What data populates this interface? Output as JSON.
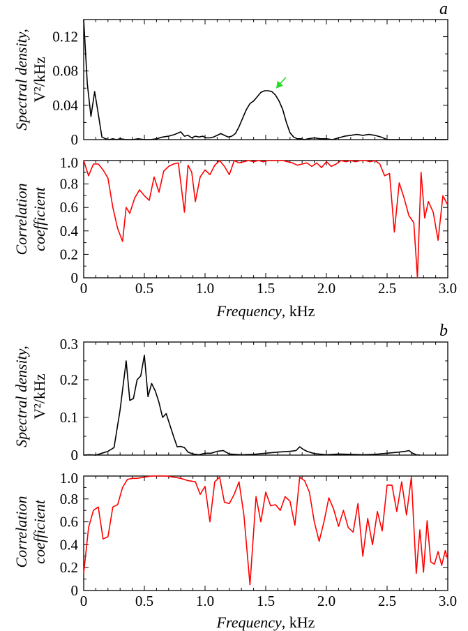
{
  "panel_labels": [
    "a",
    "b"
  ],
  "chart_data": [
    {
      "type": "line",
      "panel": "a",
      "ylabel_line1": "Spectral density,",
      "ylabel_line2": "V²/kHz",
      "xlim": [
        0,
        3.0
      ],
      "ylim": [
        0,
        0.14
      ],
      "yticks": [
        "0",
        "0.04",
        "0.08",
        "0.12"
      ],
      "xticks": [],
      "annotation": {
        "label": "peak",
        "x": 1.58,
        "y": 0.058,
        "color": "#22dd22"
      },
      "series": [
        {
          "color": "#000000",
          "x": [
            0.0,
            0.03,
            0.06,
            0.09,
            0.12,
            0.15,
            0.18,
            0.21,
            0.24,
            0.27,
            0.3,
            0.35,
            0.4,
            0.45,
            0.5,
            0.55,
            0.6,
            0.65,
            0.7,
            0.75,
            0.8,
            0.83,
            0.86,
            0.89,
            0.92,
            0.95,
            0.98,
            1.01,
            1.04,
            1.07,
            1.1,
            1.13,
            1.16,
            1.19,
            1.22,
            1.25,
            1.28,
            1.31,
            1.34,
            1.37,
            1.4,
            1.43,
            1.46,
            1.49,
            1.52,
            1.55,
            1.58,
            1.61,
            1.64,
            1.67,
            1.7,
            1.73,
            1.76,
            1.79,
            1.82,
            1.85,
            1.9,
            1.95,
            2.0,
            2.05,
            2.1,
            2.15,
            2.2,
            2.25,
            2.3,
            2.35,
            2.4,
            2.45,
            2.5,
            2.6,
            2.7,
            2.8,
            2.9,
            3.0
          ],
          "y": [
            0.14,
            0.065,
            0.027,
            0.056,
            0.03,
            0.003,
            0.001,
            0.0,
            0.001,
            0.0,
            0.001,
            0.0,
            0.0,
            0.001,
            0.0,
            0.0,
            0.001,
            0.003,
            0.004,
            0.006,
            0.009,
            0.004,
            0.005,
            0.002,
            0.004,
            0.003,
            0.004,
            0.002,
            0.002,
            0.003,
            0.005,
            0.007,
            0.005,
            0.003,
            0.004,
            0.007,
            0.015,
            0.025,
            0.035,
            0.042,
            0.045,
            0.05,
            0.055,
            0.057,
            0.057,
            0.056,
            0.052,
            0.045,
            0.035,
            0.02,
            0.008,
            0.003,
            0.001,
            0.001,
            0.0,
            0.001,
            0.002,
            0.001,
            0.001,
            0.0,
            0.002,
            0.004,
            0.005,
            0.006,
            0.005,
            0.006,
            0.005,
            0.003,
            0.0,
            0.0,
            0.0,
            0.0,
            0.0,
            0.0
          ]
        }
      ]
    },
    {
      "type": "line",
      "panel": "a",
      "ylabel_line1": "Correlation",
      "ylabel_line2": "coefficient",
      "xlabel": "Frequency",
      "xlabel_unit": ", kHz",
      "xlim": [
        0,
        3.0
      ],
      "ylim": [
        0,
        1.0
      ],
      "yticks": [
        "0",
        "0.2",
        "0.4",
        "0.6",
        "0.8",
        "1.0"
      ],
      "xticks": [
        "0",
        "0.5",
        "1.0",
        "1.5",
        "2.0",
        "2.5",
        "3.0"
      ],
      "series": [
        {
          "color": "#ff0000",
          "x": [
            0.0,
            0.04,
            0.08,
            0.12,
            0.16,
            0.2,
            0.24,
            0.28,
            0.32,
            0.35,
            0.38,
            0.42,
            0.46,
            0.5,
            0.54,
            0.58,
            0.62,
            0.66,
            0.7,
            0.74,
            0.78,
            0.83,
            0.86,
            0.89,
            0.92,
            0.96,
            1.0,
            1.04,
            1.08,
            1.12,
            1.16,
            1.2,
            1.24,
            1.28,
            1.32,
            1.36,
            1.4,
            1.44,
            1.48,
            1.52,
            1.56,
            1.6,
            1.64,
            1.68,
            1.72,
            1.76,
            1.8,
            1.84,
            1.88,
            1.92,
            1.96,
            2.0,
            2.04,
            2.08,
            2.12,
            2.16,
            2.2,
            2.24,
            2.28,
            2.32,
            2.36,
            2.4,
            2.44,
            2.48,
            2.52,
            2.56,
            2.6,
            2.64,
            2.68,
            2.72,
            2.75,
            2.78,
            2.81,
            2.84,
            2.88,
            2.92,
            2.96,
            3.0
          ],
          "y": [
            1.0,
            0.87,
            0.97,
            0.97,
            0.92,
            0.85,
            0.6,
            0.42,
            0.31,
            0.6,
            0.55,
            0.68,
            0.75,
            0.7,
            0.66,
            0.86,
            0.73,
            0.91,
            0.95,
            0.97,
            0.98,
            0.56,
            0.96,
            0.9,
            0.65,
            0.86,
            0.92,
            0.88,
            0.96,
            1.0,
            0.95,
            0.88,
            1.0,
            0.98,
            0.99,
            1.0,
            0.99,
            1.0,
            0.99,
            1.0,
            1.0,
            1.0,
            1.0,
            0.99,
            0.98,
            0.96,
            0.97,
            0.98,
            0.95,
            0.98,
            0.94,
            0.99,
            0.95,
            0.97,
            1.0,
            0.99,
            1.0,
            0.99,
            1.0,
            1.0,
            0.99,
            1.0,
            0.97,
            0.87,
            0.89,
            0.39,
            0.81,
            0.68,
            0.53,
            0.47,
            0.0,
            0.9,
            0.51,
            0.65,
            0.56,
            0.32,
            0.7,
            0.62
          ]
        }
      ]
    },
    {
      "type": "line",
      "panel": "b",
      "ylabel_line1": "Spectral density,",
      "ylabel_line2": "V²/kHz",
      "xlim": [
        0,
        3.0
      ],
      "ylim": [
        0,
        0.3
      ],
      "yticks": [
        "0",
        "0.1",
        "0.2",
        "0.3"
      ],
      "xticks": [],
      "series": [
        {
          "color": "#000000",
          "x": [
            0.0,
            0.05,
            0.1,
            0.15,
            0.2,
            0.25,
            0.3,
            0.35,
            0.38,
            0.41,
            0.44,
            0.47,
            0.5,
            0.53,
            0.56,
            0.59,
            0.62,
            0.65,
            0.68,
            0.71,
            0.74,
            0.77,
            0.8,
            0.83,
            0.86,
            0.9,
            0.95,
            1.0,
            1.05,
            1.1,
            1.15,
            1.2,
            1.3,
            1.4,
            1.5,
            1.6,
            1.7,
            1.75,
            1.78,
            1.81,
            1.84,
            1.9,
            2.0,
            2.1,
            2.2,
            2.3,
            2.4,
            2.5,
            2.6,
            2.65,
            2.68,
            2.71,
            2.74,
            2.77
          ],
          "y": [
            0.0,
            0.001,
            0.0,
            0.005,
            0.01,
            0.02,
            0.12,
            0.25,
            0.145,
            0.15,
            0.2,
            0.21,
            0.265,
            0.155,
            0.19,
            0.17,
            0.14,
            0.1,
            0.11,
            0.08,
            0.05,
            0.022,
            0.023,
            0.02,
            0.008,
            0.003,
            0.001,
            0.005,
            0.005,
            0.01,
            0.012,
            0.003,
            0.001,
            0.002,
            0.005,
            0.008,
            0.01,
            0.012,
            0.022,
            0.015,
            0.01,
            0.004,
            0.001,
            0.003,
            0.002,
            0.001,
            0.002,
            0.005,
            0.008,
            0.01,
            0.012,
            0.005,
            0.001,
            0.0
          ]
        }
      ]
    },
    {
      "type": "line",
      "panel": "b",
      "ylabel_line1": "Correlation",
      "ylabel_line2": "coefficient",
      "xlabel": "Frequency",
      "xlabel_unit": ", kHz",
      "xlim": [
        0,
        3.0
      ],
      "ylim": [
        0,
        1.0
      ],
      "yticks": [
        "0",
        "0.2",
        "0.4",
        "0.6",
        "0.8",
        "1.0"
      ],
      "xticks": [
        "0",
        "0.5",
        "1.0",
        "1.5",
        "2.0",
        "2.5",
        "3.0"
      ],
      "series": [
        {
          "color": "#ff0000",
          "x": [
            0.0,
            0.04,
            0.08,
            0.12,
            0.16,
            0.2,
            0.24,
            0.28,
            0.32,
            0.36,
            0.4,
            0.44,
            0.5,
            0.56,
            0.62,
            0.68,
            0.74,
            0.8,
            0.86,
            0.92,
            0.96,
            1.0,
            1.04,
            1.08,
            1.12,
            1.16,
            1.2,
            1.24,
            1.28,
            1.32,
            1.37,
            1.42,
            1.46,
            1.5,
            1.54,
            1.58,
            1.62,
            1.66,
            1.7,
            1.74,
            1.78,
            1.82,
            1.86,
            1.9,
            1.94,
            1.98,
            2.02,
            2.06,
            2.1,
            2.14,
            2.18,
            2.22,
            2.26,
            2.3,
            2.34,
            2.38,
            2.42,
            2.46,
            2.5,
            2.54,
            2.58,
            2.62,
            2.66,
            2.7,
            2.74,
            2.77,
            2.8,
            2.83,
            2.86,
            2.89,
            2.92,
            2.95,
            2.98,
            3.0
          ],
          "y": [
            0.15,
            0.55,
            0.7,
            0.73,
            0.45,
            0.47,
            0.73,
            0.75,
            0.9,
            0.97,
            0.98,
            0.98,
            0.99,
            1.0,
            1.0,
            1.0,
            0.99,
            0.98,
            0.96,
            0.95,
            0.84,
            0.91,
            0.6,
            0.95,
            0.99,
            0.77,
            0.76,
            0.84,
            0.95,
            0.66,
            0.05,
            0.82,
            0.6,
            0.86,
            0.74,
            0.75,
            0.7,
            0.82,
            0.78,
            0.57,
            0.99,
            0.96,
            0.86,
            0.6,
            0.43,
            0.6,
            0.81,
            0.71,
            0.56,
            0.7,
            0.55,
            0.51,
            0.76,
            0.3,
            0.63,
            0.4,
            0.69,
            0.52,
            0.92,
            0.92,
            0.69,
            0.95,
            0.66,
            0.99,
            0.15,
            0.53,
            0.16,
            0.61,
            0.25,
            0.23,
            0.34,
            0.22,
            0.35,
            0.27
          ]
        }
      ]
    }
  ]
}
